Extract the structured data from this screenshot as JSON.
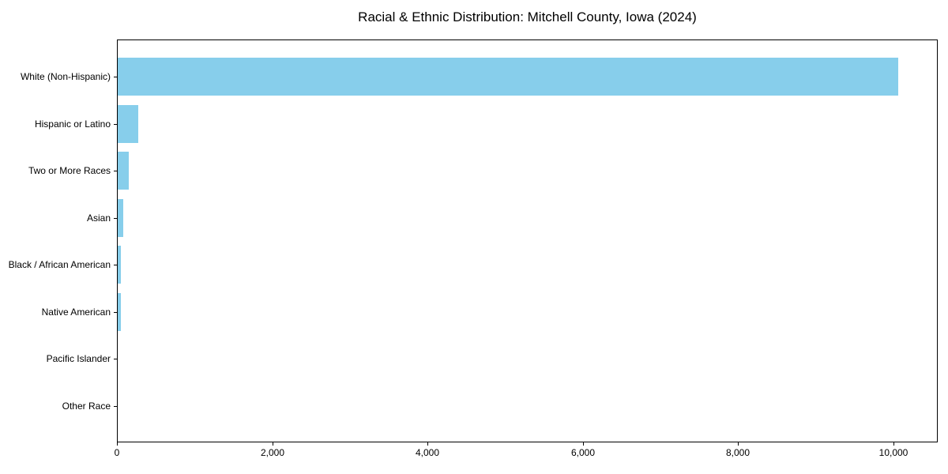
{
  "chart_data": {
    "type": "bar",
    "orientation": "horizontal",
    "title": "Racial & Ethnic Distribution: Mitchell County, Iowa (2024)",
    "categories": [
      "White (Non-Hispanic)",
      "Hispanic or Latino",
      "Two or More Races",
      "Asian",
      "Black / African American",
      "Native American",
      "Pacific Islander",
      "Other Race"
    ],
    "values": [
      10050,
      265,
      140,
      75,
      45,
      40,
      0,
      0
    ],
    "xlabel": "",
    "ylabel": "",
    "xlim": [
      0,
      10570
    ],
    "x_ticks": [
      0,
      2000,
      4000,
      6000,
      8000,
      10000
    ],
    "x_tick_labels": [
      "0",
      "2,000",
      "4,000",
      "6,000",
      "8,000",
      "10,000"
    ],
    "bar_color": "#87CEEB",
    "grid": false,
    "legend": null,
    "background_color": "#ffffff",
    "spine_color": "#000000",
    "text_color": "#000000"
  }
}
